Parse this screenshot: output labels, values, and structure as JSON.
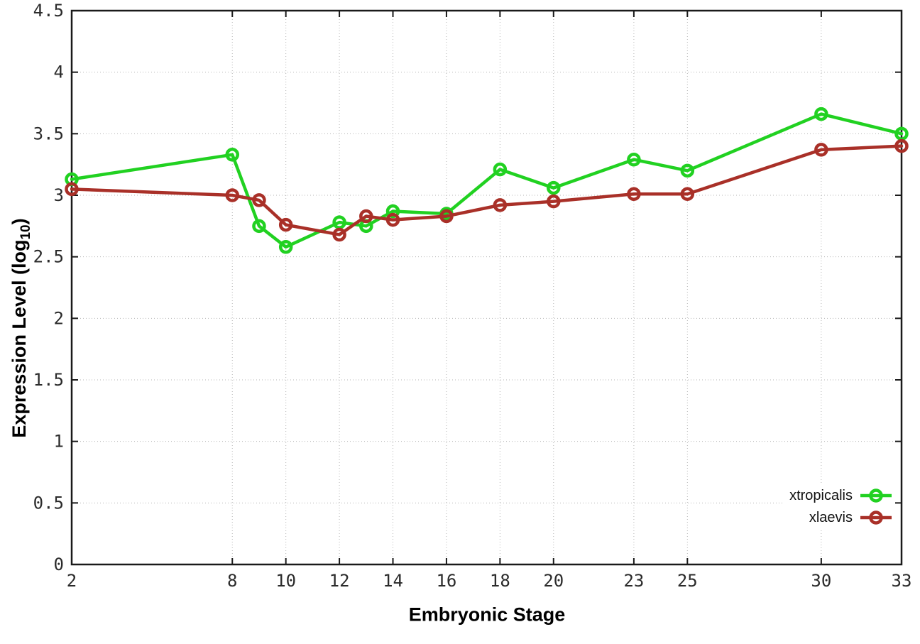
{
  "chart_data": {
    "type": "line",
    "xlabel": "Embryonic Stage",
    "ylabel": "Expression Level (log10)",
    "ylabel_parts": {
      "prefix": "Expression Level (log",
      "sub": "10",
      "suffix": ")"
    },
    "xlim": [
      2,
      33
    ],
    "ylim": [
      0,
      4.5
    ],
    "x_ticks": [
      2,
      8,
      10,
      12,
      14,
      16,
      18,
      20,
      23,
      25,
      30,
      33
    ],
    "y_ticks": [
      0,
      0.5,
      1,
      1.5,
      2,
      2.5,
      3,
      3.5,
      4,
      4.5
    ],
    "y_tick_labels": [
      "0",
      "0.5",
      "1",
      "1.5",
      "2",
      "2.5",
      "3",
      "3.5",
      "4",
      "4.5"
    ],
    "grid": true,
    "legend_position": "inside-bottom-right",
    "x": [
      2,
      8,
      9,
      10,
      12,
      13,
      14,
      16,
      18,
      20,
      23,
      25,
      30,
      33
    ],
    "series": [
      {
        "name": "xtropicalis",
        "color": "#21d121",
        "marker": "open-circle",
        "values": [
          3.13,
          3.33,
          2.75,
          2.58,
          2.78,
          2.75,
          2.87,
          2.85,
          3.21,
          3.06,
          3.29,
          3.2,
          3.66,
          3.5
        ]
      },
      {
        "name": "xlaevis",
        "color": "#a93028",
        "marker": "open-circle",
        "values": [
          3.05,
          3.0,
          2.96,
          2.76,
          2.68,
          2.83,
          2.8,
          2.83,
          2.92,
          2.95,
          3.01,
          3.01,
          3.37,
          3.4
        ]
      }
    ]
  },
  "style": {
    "background": "#ffffff",
    "grid_color": "#b5b5b5",
    "border_color": "#1a1a1a",
    "tick_label_color": "#2b2b2b",
    "axis_label_color": "#000000"
  }
}
